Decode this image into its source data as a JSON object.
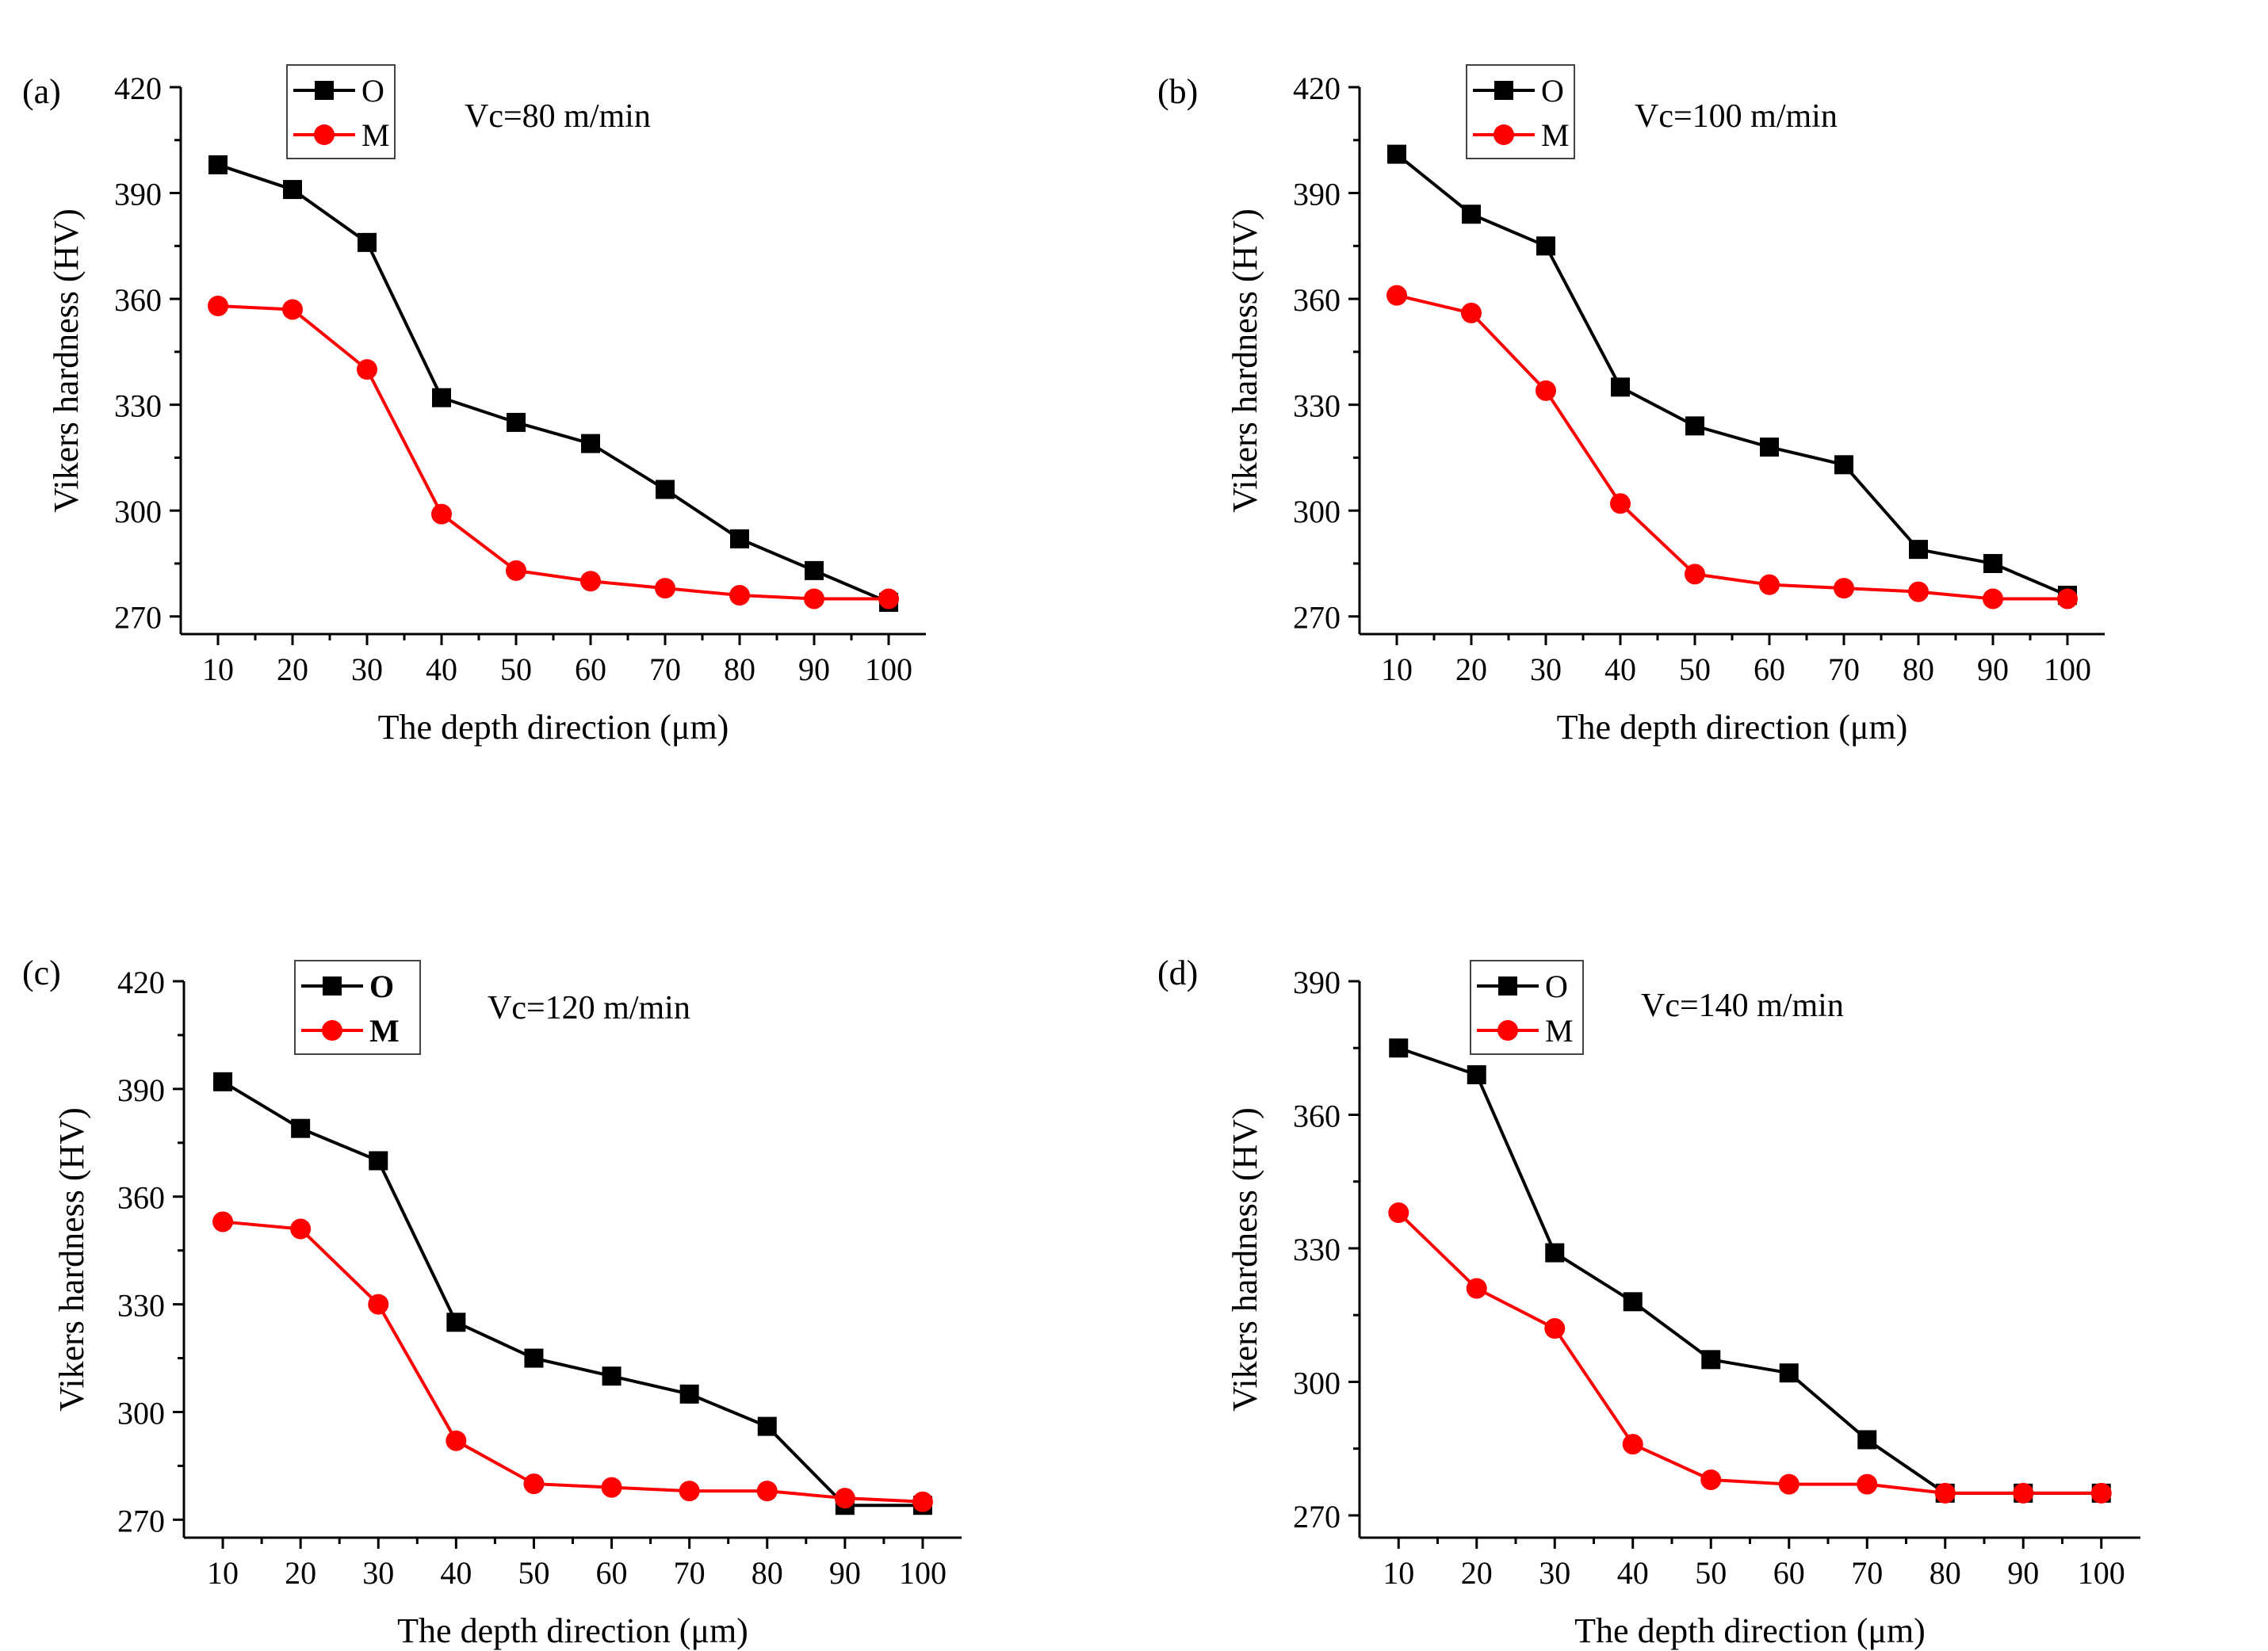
{
  "chart_data": [
    {
      "panel": "(a)",
      "type": "line",
      "annotation": "Vc=80 m/min",
      "xlabel": "The depth direction (μm)",
      "ylabel": "Vikers hardness (HV)",
      "x": [
        10,
        20,
        30,
        40,
        50,
        60,
        70,
        80,
        90,
        100
      ],
      "xticks": [
        "10",
        "20",
        "30",
        "40",
        "50",
        "60",
        "70",
        "80",
        "90",
        "100"
      ],
      "ylim": [
        265,
        420
      ],
      "yticks": [
        "270",
        "300",
        "330",
        "360",
        "390",
        "420"
      ],
      "legend_bold": false,
      "series": [
        {
          "name": "O",
          "color": "#000000",
          "marker": "square",
          "values": [
            398,
            391,
            376,
            332,
            325,
            319,
            306,
            292,
            283,
            274
          ]
        },
        {
          "name": "M",
          "color": "#ff0000",
          "marker": "circle",
          "values": [
            358,
            357,
            340,
            299,
            283,
            280,
            278,
            276,
            275,
            275
          ]
        }
      ]
    },
    {
      "panel": "(b)",
      "type": "line",
      "annotation": "Vc=100 m/min",
      "xlabel": "The depth direction (μm)",
      "ylabel": "Vikers hardness (HV)",
      "x": [
        10,
        20,
        30,
        40,
        50,
        60,
        70,
        80,
        90,
        100
      ],
      "xticks": [
        "10",
        "20",
        "30",
        "40",
        "50",
        "60",
        "70",
        "80",
        "90",
        "100"
      ],
      "ylim": [
        265,
        420
      ],
      "yticks": [
        "270",
        "300",
        "330",
        "360",
        "390",
        "420"
      ],
      "legend_bold": false,
      "series": [
        {
          "name": "O",
          "color": "#000000",
          "marker": "square",
          "values": [
            401,
            384,
            375,
            335,
            324,
            318,
            313,
            289,
            285,
            276
          ]
        },
        {
          "name": "M",
          "color": "#ff0000",
          "marker": "circle",
          "values": [
            361,
            356,
            334,
            302,
            282,
            279,
            278,
            277,
            275,
            275
          ]
        }
      ]
    },
    {
      "panel": "(c)",
      "type": "line",
      "annotation": "Vc=120 m/min",
      "xlabel": "The depth direction (μm)",
      "ylabel": "Vikers hardness (HV)",
      "x": [
        10,
        20,
        30,
        40,
        50,
        60,
        70,
        80,
        90,
        100
      ],
      "xticks": [
        "10",
        "20",
        "30",
        "40",
        "50",
        "60",
        "70",
        "80",
        "90",
        "100"
      ],
      "ylim": [
        265,
        420
      ],
      "yticks": [
        "270",
        "300",
        "330",
        "360",
        "390",
        "420"
      ],
      "legend_bold": true,
      "series": [
        {
          "name": "O",
          "color": "#000000",
          "marker": "square",
          "values": [
            392,
            379,
            370,
            325,
            315,
            310,
            305,
            296,
            274,
            274
          ]
        },
        {
          "name": "M",
          "color": "#ff0000",
          "marker": "circle",
          "values": [
            353,
            351,
            330,
            292,
            280,
            279,
            278,
            278,
            276,
            275
          ]
        }
      ]
    },
    {
      "panel": "(d)",
      "type": "line",
      "annotation": "Vc=140 m/min",
      "xlabel": "The depth direction (μm)",
      "ylabel": "Vikers hardness (HV)",
      "x": [
        10,
        20,
        30,
        40,
        50,
        60,
        70,
        80,
        90,
        100
      ],
      "xticks": [
        "10",
        "20",
        "30",
        "40",
        "50",
        "60",
        "70",
        "80",
        "90",
        "100"
      ],
      "ylim": [
        265,
        390
      ],
      "yticks": [
        "270",
        "300",
        "330",
        "360",
        "390"
      ],
      "legend_bold": false,
      "series": [
        {
          "name": "O",
          "color": "#000000",
          "marker": "square",
          "values": [
            375,
            369,
            329,
            318,
            305,
            302,
            287,
            275,
            275,
            275
          ]
        },
        {
          "name": "M",
          "color": "#ff0000",
          "marker": "circle",
          "values": [
            338,
            321,
            312,
            286,
            278,
            277,
            277,
            275,
            275,
            275
          ]
        }
      ]
    }
  ]
}
